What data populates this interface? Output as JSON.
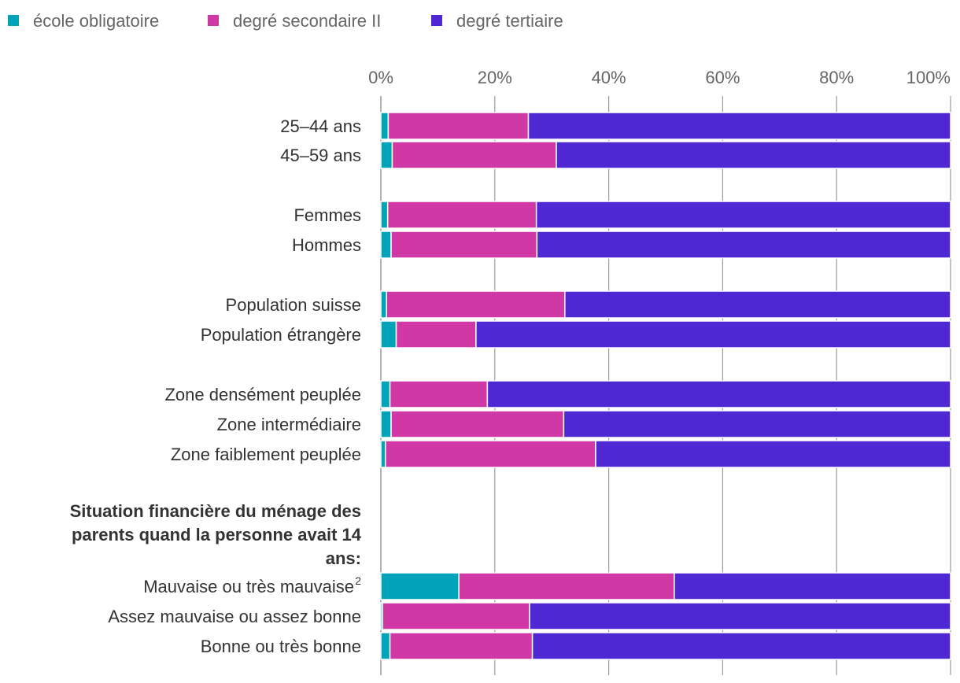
{
  "chart_data": {
    "type": "bar",
    "orientation": "horizontal",
    "stacked": true,
    "legend_position": "top-left",
    "xlim": [
      0,
      100
    ],
    "x_ticks": [
      "0%",
      "20%",
      "40%",
      "60%",
      "80%",
      "100%"
    ],
    "grid": true,
    "series": [
      {
        "name": "école obligatoire",
        "color": "#00A3B7"
      },
      {
        "name": "degré secondaire II",
        "color": "#CF38A5"
      },
      {
        "name": "degré tertiaire",
        "color": "#4F27D3"
      }
    ],
    "categories": [
      "25–44 ans",
      "45–59 ans",
      "Femmes",
      "Hommes",
      "Population suisse",
      "Population étrangère",
      "Zone densément peuplée",
      "Zone intermédiaire",
      "Zone faiblement peuplée",
      "Mauvaise ou très mauvaise",
      "Assez mauvaise ou assez bonne",
      "Bonne ou très bonne"
    ],
    "category_superscripts": [
      "",
      "",
      "",
      "",
      "",
      "",
      "",
      "",
      "",
      "2",
      "",
      ""
    ],
    "values": [
      [
        1.3,
        24.6,
        74.1
      ],
      [
        2.0,
        28.8,
        69.2
      ],
      [
        1.2,
        26.1,
        72.7
      ],
      [
        1.8,
        25.6,
        72.6
      ],
      [
        1.0,
        31.3,
        67.7
      ],
      [
        2.7,
        14.0,
        83.3
      ],
      [
        1.6,
        17.1,
        81.3
      ],
      [
        1.8,
        30.3,
        67.9
      ],
      [
        0.8,
        36.9,
        62.3
      ],
      [
        13.7,
        37.8,
        48.5
      ],
      [
        0.3,
        25.8,
        73.9
      ],
      [
        1.6,
        25.0,
        73.4
      ]
    ],
    "group_heading": {
      "lines": [
        "Situation financière du ménage des",
        "parents quand la personne avait 14",
        "ans:"
      ]
    }
  }
}
